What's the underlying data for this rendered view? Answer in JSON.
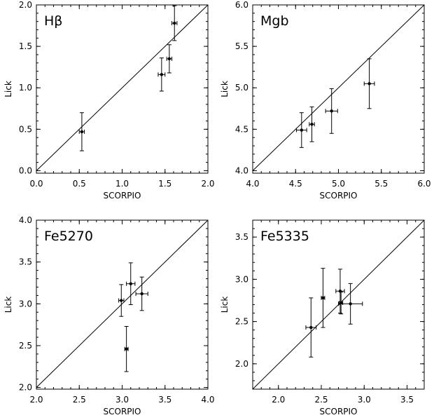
{
  "chart_data": [
    {
      "type": "scatter",
      "label": "Hβ",
      "xlabel": "SCORPIO",
      "ylabel": "Lick",
      "xlim": [
        0.0,
        2.0
      ],
      "ylim": [
        -0.03,
        2.0
      ],
      "xticks": [
        "0.0",
        "0.5",
        "1.0",
        "1.5",
        "2.0"
      ],
      "yticks": [
        "0.0",
        "0.5",
        "1.0",
        "1.5",
        "2.0"
      ],
      "one_to_one_line": true,
      "points": [
        {
          "x": 0.53,
          "y": 0.47,
          "xerr": 0.03,
          "yerr": 0.23
        },
        {
          "x": 1.46,
          "y": 1.16,
          "xerr": 0.04,
          "yerr": 0.2
        },
        {
          "x": 1.55,
          "y": 1.35,
          "xerr": 0.03,
          "yerr": 0.17
        },
        {
          "x": 1.61,
          "y": 1.78,
          "xerr": 0.03,
          "yerr": 0.21
        }
      ]
    },
    {
      "type": "scatter",
      "label": "Mgb",
      "xlabel": "SCORPIO",
      "ylabel": "Lick",
      "xlim": [
        4.0,
        6.0
      ],
      "ylim": [
        3.97,
        6.0
      ],
      "xticks": [
        "4.0",
        "4.5",
        "5.0",
        "5.5",
        "6.0"
      ],
      "yticks": [
        "4.0",
        "4.5",
        "5.0",
        "5.5",
        "6.0"
      ],
      "one_to_one_line": true,
      "points": [
        {
          "x": 4.57,
          "y": 4.49,
          "xerr": 0.06,
          "yerr": 0.21
        },
        {
          "x": 4.69,
          "y": 4.56,
          "xerr": 0.03,
          "yerr": 0.21
        },
        {
          "x": 4.92,
          "y": 4.72,
          "xerr": 0.07,
          "yerr": 0.27
        },
        {
          "x": 5.36,
          "y": 5.05,
          "xerr": 0.06,
          "yerr": 0.3
        }
      ]
    },
    {
      "type": "scatter",
      "label": "Fe5270",
      "xlabel": "SCORPIO",
      "ylabel": "Lick",
      "xlim": [
        2.0,
        4.0
      ],
      "ylim": [
        1.98,
        4.0
      ],
      "xticks": [
        "2.0",
        "2.5",
        "3.0",
        "3.5",
        "4.0"
      ],
      "yticks": [
        "2.0",
        "2.5",
        "3.0",
        "3.5",
        "4.0"
      ],
      "one_to_one_line": true,
      "points": [
        {
          "x": 2.99,
          "y": 3.04,
          "xerr": 0.03,
          "yerr": 0.19
        },
        {
          "x": 3.05,
          "y": 2.46,
          "xerr": 0.02,
          "yerr": 0.27
        },
        {
          "x": 3.1,
          "y": 3.24,
          "xerr": 0.05,
          "yerr": 0.25
        },
        {
          "x": 3.23,
          "y": 3.12,
          "xerr": 0.07,
          "yerr": 0.2
        }
      ]
    },
    {
      "type": "scatter",
      "label": "Fe5335",
      "xlabel": "SCORPIO",
      "ylabel": "Lick",
      "xlim": [
        1.7,
        3.7
      ],
      "ylim": [
        1.7,
        3.7
      ],
      "xticks": [
        "2.0",
        "2.5",
        "3.0",
        "3.5"
      ],
      "yticks": [
        "2.0",
        "2.5",
        "3.0",
        "3.5"
      ],
      "one_to_one_line": true,
      "points": [
        {
          "x": 2.38,
          "y": 2.43,
          "xerr": 0.06,
          "yerr": 0.35
        },
        {
          "x": 2.52,
          "y": 2.78,
          "xerr": 0.02,
          "yerr": 0.35
        },
        {
          "x": 2.72,
          "y": 2.86,
          "xerr": 0.05,
          "yerr": 0.26
        },
        {
          "x": 2.73,
          "y": 2.72,
          "xerr": 0.02,
          "yerr": 0.13
        },
        {
          "x": 2.84,
          "y": 2.71,
          "xerr": 0.14,
          "yerr": 0.24
        }
      ]
    }
  ]
}
